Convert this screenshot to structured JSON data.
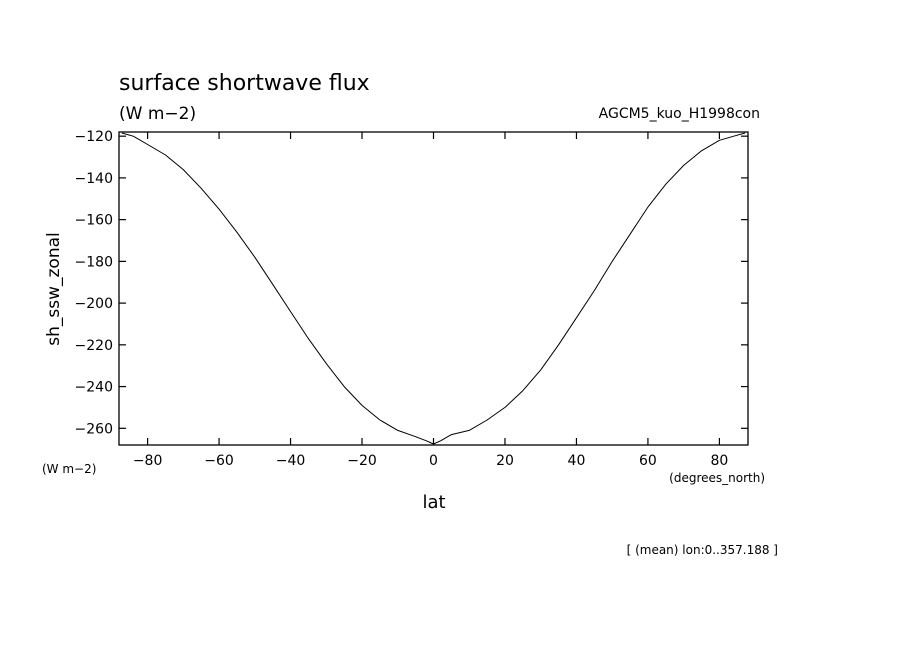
{
  "chart_data": {
    "type": "line",
    "title": "surface shortwave flux",
    "units_label": "(W m−2)",
    "experiment": "AGCM5_kuo_H1998con",
    "ylabel": "sh_ssw_zonal",
    "y_units": "(W m−2)",
    "xlabel": "lat",
    "x_units": "(degrees_north)",
    "footnote": "[ (mean) lon:0..357.188 ]",
    "xlim": [
      -88,
      88
    ],
    "ylim": [
      -268,
      -118
    ],
    "xticks": [
      -80,
      -60,
      -40,
      -20,
      0,
      20,
      40,
      60,
      80
    ],
    "xtick_labels": [
      "−80",
      "−60",
      "−40",
      "−20",
      "0",
      "20",
      "40",
      "60",
      "80"
    ],
    "yticks": [
      -120,
      -140,
      -160,
      -180,
      -200,
      -220,
      -240,
      -260
    ],
    "ytick_labels": [
      "−120",
      "−140",
      "−160",
      "−180",
      "−200",
      "−220",
      "−240",
      "−260"
    ],
    "grid": false,
    "series": [
      {
        "x": [
          -87.2,
          -84,
          -80,
          -75,
          -70,
          -65,
          -60,
          -55,
          -50,
          -45,
          -40,
          -35,
          -30,
          -25,
          -20,
          -15,
          -10,
          -5,
          -2,
          0,
          2,
          5,
          10,
          15,
          20,
          25,
          30,
          35,
          40,
          45,
          50,
          55,
          60,
          65,
          70,
          75,
          80,
          84,
          87.2
        ],
        "y": [
          -118.5,
          -120,
          -124,
          -129,
          -136,
          -145,
          -155,
          -166,
          -178,
          -191,
          -204,
          -217,
          -229,
          -240,
          -249,
          -256,
          -261,
          -264,
          -266,
          -267.5,
          -266,
          -263,
          -261,
          -256,
          -250,
          -242,
          -232,
          -220,
          -207,
          -194,
          -180,
          -167,
          -154,
          -143,
          -134,
          -127,
          -122,
          -120,
          -118.5
        ]
      }
    ]
  }
}
